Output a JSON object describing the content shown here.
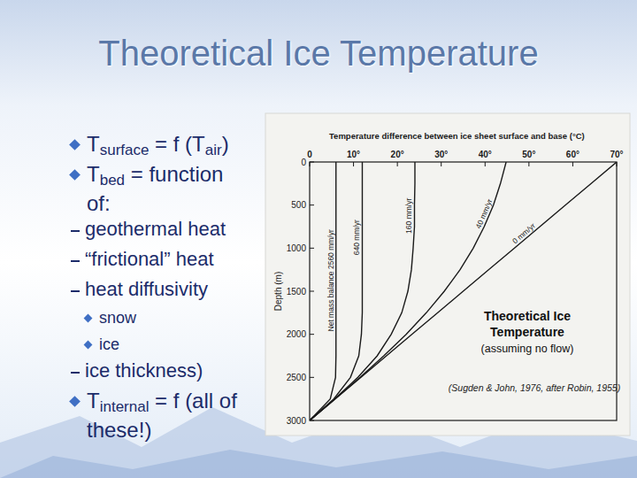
{
  "slide": {
    "title": "Theoretical Ice Temperature",
    "items": [
      {
        "level": 1,
        "parts": [
          {
            "text": "T"
          },
          {
            "text": "surface",
            "sub": true
          },
          {
            "text": " = f (T"
          },
          {
            "text": "air",
            "sub": true
          },
          {
            "text": ")"
          }
        ]
      },
      {
        "level": 1,
        "parts": [
          {
            "text": "T"
          },
          {
            "text": "bed",
            "sub": true
          },
          {
            "text": " = function"
          },
          {
            "text": "of:",
            "newline": true
          }
        ]
      },
      {
        "level": 2,
        "text": "geothermal heat"
      },
      {
        "level": 2,
        "text": "“frictional” heat"
      },
      {
        "level": 2,
        "text": "heat diffusivity"
      },
      {
        "level": 3,
        "text": "snow"
      },
      {
        "level": 3,
        "text": "ice"
      },
      {
        "level": 2,
        "text": "ice thickness)"
      },
      {
        "level": 1,
        "parts": [
          {
            "text": "T"
          },
          {
            "text": "internal",
            "sub": true
          },
          {
            "text": " = f (all of"
          },
          {
            "text": "these!)",
            "newline": true
          }
        ]
      }
    ]
  },
  "chart_data": {
    "type": "line",
    "x_label": "Temperature difference between ice sheet surface and base (°C)",
    "y_label": "Depth (m)",
    "xlim": [
      0,
      70
    ],
    "xticks": [
      0,
      {
        "value": 10,
        "label": "10°"
      },
      {
        "value": 20,
        "label": "20°"
      },
      {
        "value": 30,
        "label": "30°"
      },
      {
        "value": 40,
        "label": "40°"
      },
      {
        "value": 50,
        "label": "50°"
      },
      {
        "value": 60,
        "label": "60°"
      },
      {
        "value": 70,
        "label": "70°"
      }
    ],
    "ylim": [
      0,
      3000
    ],
    "yticks": [
      0,
      500,
      1000,
      1500,
      2000,
      2500,
      3000
    ],
    "grid": false,
    "color": "#1a1a1a",
    "y": [
      0,
      250,
      500,
      750,
      1000,
      1250,
      1500,
      1750,
      2000,
      2250,
      2500,
      2750,
      3000
    ],
    "series": [
      {
        "name": "0 mm/yr",
        "values": [
          70,
          64.2,
          58.3,
          52.5,
          46.7,
          40.8,
          35,
          29.2,
          23.3,
          17.5,
          11.7,
          5.8,
          0
        ]
      },
      {
        "name": "40 mm/yr",
        "values": [
          44.8,
          43.5,
          41.9,
          39.8,
          37.3,
          34.3,
          30.7,
          26.6,
          22,
          16.9,
          11.5,
          5.8,
          0
        ]
      },
      {
        "name": "160 mm/yr",
        "values": [
          24,
          24,
          23.9,
          23.9,
          23.6,
          23.2,
          22.4,
          21,
          18.6,
          15.4,
          11,
          5.7,
          0
        ]
      },
      {
        "name": "640 mm/yr",
        "values": [
          12,
          12,
          12,
          12,
          12,
          12,
          12,
          12,
          11.8,
          11.2,
          9.3,
          5.5,
          0
        ]
      },
      {
        "name": "Net mass balance 2560 mm/yr",
        "values": [
          6,
          6,
          6,
          6,
          6,
          6,
          6,
          6,
          6,
          6,
          5.9,
          4.7,
          0
        ]
      }
    ],
    "annotation": [
      "Theoretical Ice",
      "Temperature",
      "(assuming no flow)"
    ],
    "source": "(Sugden & John, 1976, after Robin, 1955)"
  }
}
